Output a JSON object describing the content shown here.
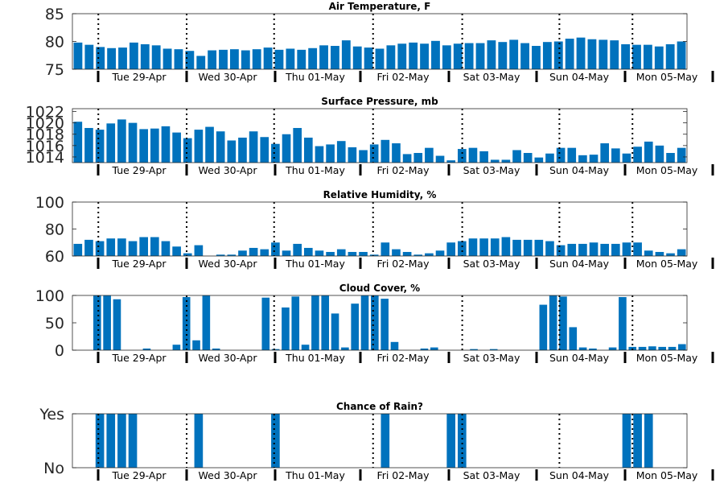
{
  "chart_data": [
    {
      "type": "bar",
      "title": "Air Temperature, F",
      "ylim": [
        75,
        85
      ],
      "yticks": [
        75,
        80,
        85
      ],
      "ytick_labels": [
        "75",
        "80",
        "85"
      ],
      "values": [
        79.8,
        79.4,
        79.0,
        78.8,
        78.9,
        79.8,
        79.5,
        79.3,
        78.7,
        78.6,
        78.3,
        77.4,
        78.4,
        78.5,
        78.6,
        78.4,
        78.6,
        78.9,
        78.5,
        78.7,
        78.5,
        78.8,
        79.3,
        79.2,
        80.2,
        79.1,
        78.9,
        78.7,
        79.3,
        79.6,
        79.8,
        79.6,
        80.1,
        79.3,
        79.6,
        79.7,
        79.7,
        80.2,
        79.9,
        80.3,
        79.7,
        79.2,
        79.9,
        80.0,
        80.5,
        80.7,
        80.4,
        80.3,
        80.2,
        79.5,
        79.4,
        79.4,
        79.1,
        79.5,
        80.0
      ],
      "color": "#0072bd",
      "grid": false
    },
    {
      "type": "bar",
      "title": "Surface Pressure, mb",
      "ylim": [
        1013,
        1022.5
      ],
      "yticks": [
        1014,
        1016,
        1018,
        1020,
        1022
      ],
      "ytick_labels": [
        "1014",
        "1016",
        "1018",
        "1020",
        "1022"
      ],
      "values": [
        1020.2,
        1019.1,
        1018.8,
        1019.9,
        1020.6,
        1020.0,
        1018.9,
        1019.0,
        1019.4,
        1018.3,
        1017.3,
        1018.8,
        1019.3,
        1018.5,
        1016.9,
        1017.4,
        1018.5,
        1017.5,
        1016.3,
        1018.0,
        1019.1,
        1017.4,
        1015.9,
        1016.2,
        1016.8,
        1015.7,
        1015.2,
        1016.2,
        1017.0,
        1016.4,
        1014.5,
        1014.7,
        1015.6,
        1014.2,
        1013.4,
        1015.4,
        1015.6,
        1015.0,
        1013.5,
        1013.5,
        1015.2,
        1014.7,
        1013.9,
        1014.6,
        1015.6,
        1015.6,
        1014.3,
        1014.4,
        1016.4,
        1015.5,
        1014.6,
        1015.8,
        1016.7,
        1016.0,
        1014.7,
        1015.6
      ],
      "color": "#0072bd",
      "grid": false
    },
    {
      "type": "bar",
      "title": "Relative Humidity, %",
      "ylim": [
        60,
        100
      ],
      "yticks": [
        60,
        80,
        100
      ],
      "ytick_labels": [
        "60",
        "80",
        "100"
      ],
      "values": [
        69,
        72,
        71,
        73,
        73,
        71,
        74,
        74,
        71,
        67,
        62,
        68,
        60,
        61,
        61,
        64,
        66,
        65,
        70,
        64,
        69,
        66,
        64,
        63,
        65,
        63,
        63,
        61,
        70,
        65,
        63,
        61,
        62,
        64,
        70,
        71,
        73,
        73,
        73,
        74,
        72,
        72,
        72,
        71,
        68,
        69,
        69,
        70,
        69,
        69,
        70,
        70,
        64,
        63,
        62,
        65
      ],
      "color": "#0072bd",
      "grid": false
    },
    {
      "type": "bar",
      "title": "Cloud Cover, %",
      "ylim": [
        0,
        100
      ],
      "yticks": [
        0,
        50,
        100
      ],
      "ytick_labels": [
        "0",
        "50",
        "100"
      ],
      "values": [
        0,
        0,
        100,
        100,
        93,
        0,
        0,
        3,
        0,
        0,
        10,
        97,
        18,
        100,
        3,
        0,
        0,
        0,
        0,
        96,
        2,
        78,
        98,
        10,
        100,
        100,
        67,
        5,
        85,
        100,
        100,
        94,
        15,
        0,
        0,
        3,
        5,
        0,
        0,
        0,
        2,
        0,
        2,
        0,
        0,
        0,
        0,
        83,
        100,
        98,
        42,
        5,
        3,
        0,
        5,
        97,
        6,
        6,
        7,
        6,
        6,
        11
      ],
      "color": "#0072bd",
      "grid": false
    },
    {
      "type": "bar",
      "title": "Chance of Rain?",
      "ylim": [
        0,
        1
      ],
      "yticks": [
        0,
        1
      ],
      "ytick_labels": [
        "No",
        "Yes"
      ],
      "values": [
        0,
        0,
        1,
        1,
        1,
        1,
        0,
        0,
        0,
        0,
        0,
        1,
        0,
        0,
        0,
        0,
        0,
        0,
        1,
        0,
        0,
        0,
        0,
        0,
        0,
        0,
        0,
        0,
        1,
        0,
        0,
        0,
        0,
        0,
        1,
        1,
        0,
        0,
        0,
        0,
        0,
        0,
        0,
        0,
        0,
        0,
        0,
        0,
        0,
        0,
        1,
        1,
        1,
        0,
        0,
        0
      ],
      "color": "#0072bd",
      "grid": false
    }
  ],
  "x_axis": {
    "tick_labels": [
      "Tue 29-Apr",
      "Wed 30-Apr",
      "Thu 01-May",
      "Fri 02-May",
      "Sat 03-May",
      "Sun 04-May",
      "Mon 05-May"
    ]
  }
}
